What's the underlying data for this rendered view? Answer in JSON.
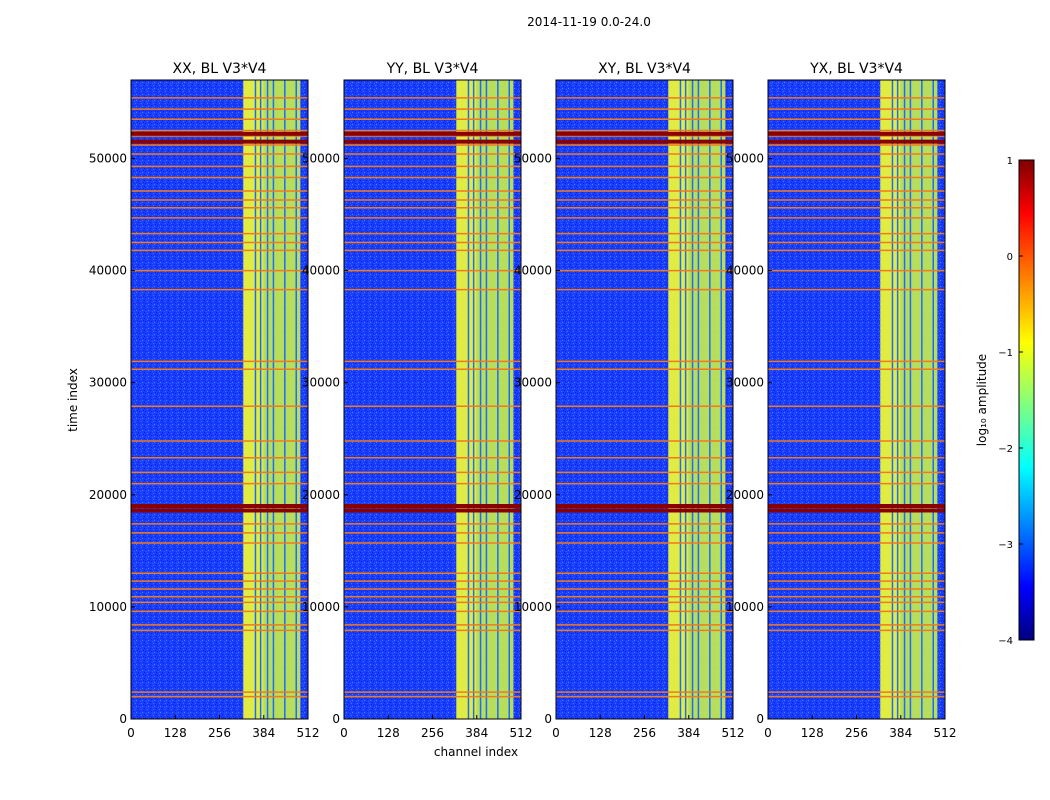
{
  "suptitle": "2014-11-19 0.0-24.0",
  "xlabel": "channel index",
  "ylabel": "time index",
  "chart_data": {
    "type": "heatmap",
    "x_range": [
      0,
      512
    ],
    "y_range": [
      0,
      57000
    ],
    "x_ticks": [
      0,
      128,
      256,
      384,
      512
    ],
    "y_ticks": [
      0,
      10000,
      20000,
      30000,
      40000,
      50000
    ],
    "y_tick_labels": [
      "0",
      "10000",
      "20000",
      "30000",
      "40000",
      "50000"
    ],
    "panels": [
      {
        "title": "XX, BL V3*V4"
      },
      {
        "title": "YY, BL V3*V4"
      },
      {
        "title": "XY, BL V3*V4"
      },
      {
        "title": "YX, BL V3*V4"
      }
    ],
    "band_start_channel": 325,
    "band_end_channel": 490,
    "vertical_lines_channels": [
      360,
      375,
      395,
      412,
      445,
      478
    ],
    "flagged_rows_time_index": [
      2000,
      2400,
      7900,
      8400,
      9600,
      10400,
      10900,
      11600,
      12300,
      13000,
      15700,
      16600,
      17400,
      18600,
      19000,
      21000,
      22000,
      23300,
      24800,
      27900,
      31200,
      31900,
      38300,
      40000,
      41800,
      42500,
      43300,
      44700,
      45600,
      46300,
      47100,
      48300,
      49300,
      50400,
      51200,
      52000,
      52500,
      53500,
      54400,
      55400
    ],
    "colorbar": {
      "label": "log₁₀ amplitude",
      "min": -4,
      "max": 1,
      "ticks": [
        1,
        0,
        -1,
        -2,
        -3,
        -4
      ],
      "tick_labels": [
        "1",
        "0",
        "−1",
        "−2",
        "−3",
        "−4"
      ]
    }
  }
}
